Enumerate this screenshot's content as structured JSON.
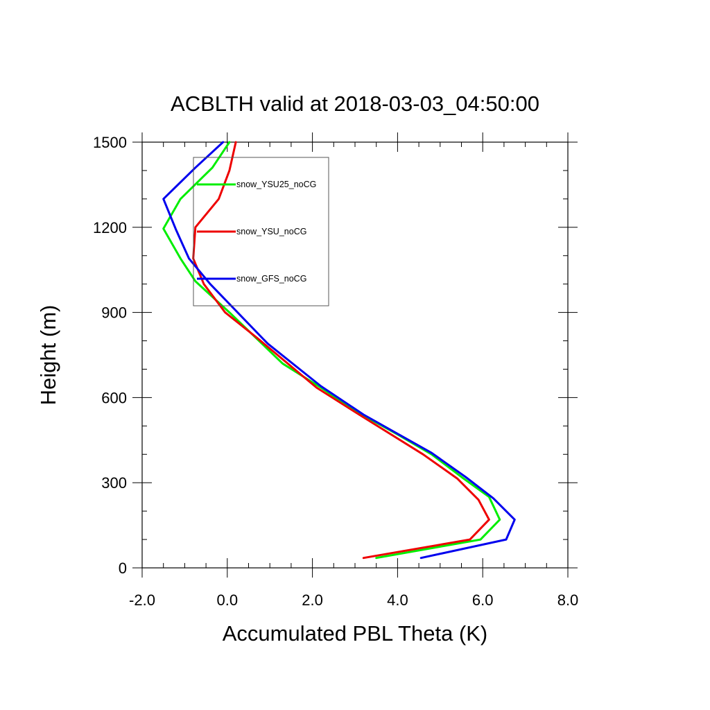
{
  "chart_data": {
    "type": "line",
    "title": "ACBLTH valid at 2018-03-03_04:50:00",
    "xlabel": "Accumulated PBL Theta (K)",
    "ylabel": "Height (m)",
    "xlim": [
      -2.0,
      8.0
    ],
    "ylim": [
      0,
      1500
    ],
    "xticks": [
      -2.0,
      0.0,
      2.0,
      4.0,
      6.0,
      8.0
    ],
    "xtick_labels": [
      "-2.0",
      "0.0",
      "2.0",
      "4.0",
      "6.0",
      "8.0"
    ],
    "yticks": [
      0,
      300,
      600,
      900,
      1200,
      1500
    ],
    "ytick_labels": [
      "0",
      "300",
      "600",
      "900",
      "1200",
      "1500"
    ],
    "legend_position": "top-left",
    "grid": false,
    "series": [
      {
        "name": "snow_YSU25_noCG",
        "color": "#00ee00",
        "x": [
          3.5,
          5.95,
          6.4,
          6.15,
          5.55,
          4.8,
          4.0,
          3.1,
          2.2,
          1.3,
          0.05,
          -0.75,
          -1.1,
          -1.5,
          -1.1,
          -0.35,
          0.05
        ],
        "y": [
          35,
          100,
          170,
          250,
          315,
          400,
          470,
          545,
          635,
          720,
          900,
          1010,
          1090,
          1195,
          1300,
          1410,
          1500
        ]
      },
      {
        "name": "snow_YSU_noCG",
        "color": "#ee0000",
        "x": [
          3.2,
          5.7,
          6.15,
          5.9,
          5.4,
          4.6,
          3.1,
          2.1,
          0.7,
          -0.05,
          -0.55,
          -0.8,
          -0.75,
          -0.2,
          0.05,
          0.2
        ],
        "y": [
          35,
          100,
          170,
          240,
          315,
          400,
          540,
          635,
          810,
          900,
          1000,
          1090,
          1200,
          1300,
          1400,
          1500
        ]
      },
      {
        "name": "snow_GFS_noCG",
        "color": "#0000ee",
        "x": [
          4.55,
          6.55,
          6.75,
          6.25,
          5.6,
          4.8,
          3.2,
          2.2,
          0.95,
          -0.4,
          -0.9,
          -1.2,
          -1.5,
          -0.75,
          -0.1
        ],
        "y": [
          35,
          100,
          170,
          245,
          320,
          405,
          540,
          640,
          790,
          1000,
          1090,
          1190,
          1300,
          1410,
          1500
        ]
      }
    ]
  }
}
